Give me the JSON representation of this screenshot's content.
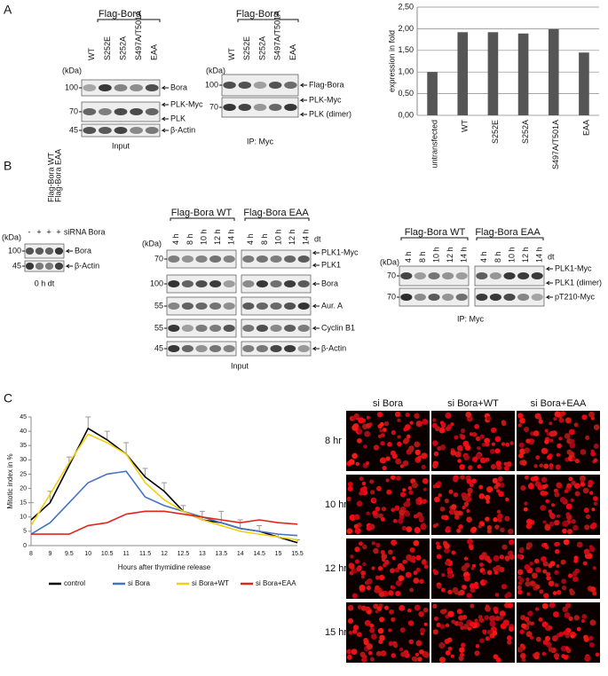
{
  "panel_labels": [
    "A",
    "B",
    "C"
  ],
  "chart_data": [
    {
      "type": "bar",
      "y_label": "expression in fold",
      "categories": [
        "untransfected",
        "WT",
        "S252E",
        "S252A",
        "S497A/T501A",
        "EAA"
      ],
      "values": [
        1.0,
        1.92,
        1.92,
        1.89,
        1.99,
        1.45
      ],
      "color": "#555555",
      "ylim": [
        0,
        2.5
      ],
      "yticks": [
        {
          "value": 0,
          "label": "0,00"
        },
        {
          "value": 0.5,
          "label": "0,50"
        },
        {
          "value": 1,
          "label": "1,00"
        },
        {
          "value": 1.5,
          "label": "1,50"
        },
        {
          "value": 2,
          "label": "2,00"
        },
        {
          "value": 2.5,
          "label": "2,50"
        }
      ],
      "grid": true
    },
    {
      "type": "line",
      "y_label": "Mitotic index in %",
      "x_label": "Hours after thymidine release",
      "categories": [
        "8",
        "9",
        "9.5",
        "10",
        "10.5",
        "11",
        "11.5",
        "12",
        "12.5",
        "13",
        "13.5",
        "14",
        "14.5",
        "15",
        "15.5"
      ],
      "ylim": [
        0,
        45
      ],
      "yticks": [
        0,
        5,
        10,
        15,
        20,
        25,
        30,
        35,
        40,
        45
      ],
      "series": [
        {
          "name": "control",
          "color": "#000000",
          "values": [
            9,
            15,
            28,
            41,
            37,
            32,
            24,
            19,
            12,
            9,
            8,
            6,
            5,
            3,
            1
          ],
          "errors": [
            6,
            4,
            3,
            4,
            3,
            4,
            3,
            3,
            2,
            3,
            4,
            3,
            2,
            1,
            1
          ]
        },
        {
          "name": "si Bora",
          "color": "#4472c4",
          "values": [
            4,
            8,
            15,
            22,
            25,
            26,
            17,
            14,
            12,
            10,
            8,
            6,
            5,
            4,
            3.5
          ]
        },
        {
          "name": "si Bora+WT",
          "color": "#f2cf0f",
          "values": [
            7,
            18,
            29,
            39,
            36,
            32,
            22,
            16,
            12,
            9,
            7,
            5,
            4,
            3,
            2
          ]
        },
        {
          "name": "si Bora+EAA",
          "color": "#e3261b",
          "values": [
            4,
            4,
            4,
            7,
            8,
            11,
            12,
            12,
            11,
            10,
            9,
            8,
            9,
            8,
            7.5
          ]
        }
      ]
    }
  ],
  "blots": [
    {
      "headers": [
        "Flag-Bora"
      ],
      "lanes": [
        "WT",
        "S252E",
        "S252A",
        "S497A/T501A",
        "EAA"
      ],
      "kda": "(kDa)",
      "rows": [
        {
          "marker": "100",
          "labels": [
            "Bora"
          ]
        },
        {
          "marker": "70",
          "labels": [
            "PLK-Myc",
            "PLK"
          ]
        },
        {
          "marker": "45",
          "labels": [
            "β-Actin"
          ]
        }
      ],
      "caption": "Input"
    },
    {
      "headers": [
        "Flag-Bora"
      ],
      "lanes": [
        "WT",
        "S252E",
        "S252A",
        "S497A/T501A",
        "EAA"
      ],
      "kda": "(kDa)",
      "rows": [
        {
          "marker": "100",
          "labels": [
            "Flag-Bora"
          ]
        },
        {
          "marker": "70",
          "labels": [
            "PLK-Myc",
            "PLK (dimer)"
          ]
        }
      ],
      "caption": "IP: Myc"
    },
    {
      "headers": [
        "Flag-Bora WT",
        "Flag-Bora EAA"
      ],
      "signs_label": "siRNA Bora",
      "signs": [
        "-",
        "+",
        "+",
        "+"
      ],
      "kda": "(kDa)",
      "rows": [
        {
          "marker": "100",
          "labels": [
            "Bora"
          ]
        },
        {
          "marker": "45",
          "labels": [
            "β-Actin"
          ]
        }
      ],
      "caption": "0 h dt"
    },
    {
      "headers": [
        "Flag-Bora WT",
        "Flag-Bora EAA"
      ],
      "lanes": [
        "4 h",
        "8 h",
        "10 h",
        "12 h",
        "14 h"
      ],
      "lane_unit": "dt",
      "kda": "(kDa)",
      "rows": [
        {
          "marker": "70",
          "labels": [
            "PLK1-Myc",
            "PLK1"
          ]
        },
        {
          "marker": "100",
          "labels": [
            "Bora"
          ]
        },
        {
          "marker": "55",
          "labels": [
            "Aur. A"
          ]
        },
        {
          "marker": "55",
          "labels": [
            "Cyclin B1"
          ]
        },
        {
          "marker": "45",
          "labels": [
            "β-Actin"
          ]
        }
      ],
      "caption": "Input"
    },
    {
      "headers": [
        "Flag-Bora WT",
        "Flag-Bora EAA"
      ],
      "lanes": [
        "4 h",
        "8 h",
        "10 h",
        "12 h",
        "14 h"
      ],
      "lane_unit": "dt",
      "kda": "(kDa)",
      "rows": [
        {
          "marker": "70",
          "labels": [
            "PLK1-Myc",
            "PLK1 (dimer)"
          ]
        },
        {
          "marker": "70",
          "labels": [
            "pT210-Myc"
          ]
        }
      ],
      "caption": "IP: Myc"
    }
  ],
  "microscopy": {
    "columns": [
      "si Bora",
      "si Bora+WT",
      "si Bora+EAA"
    ],
    "rows": [
      "8 hr",
      "10 hr",
      "12 hr",
      "15 hr"
    ]
  }
}
